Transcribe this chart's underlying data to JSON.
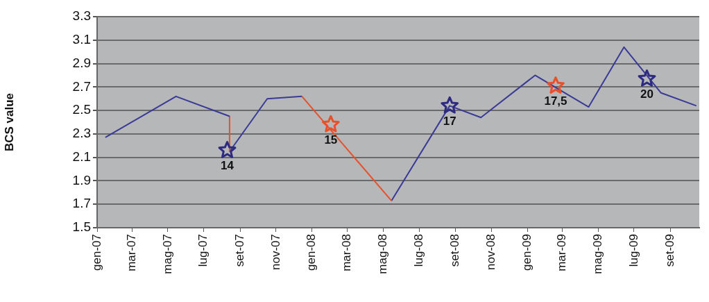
{
  "chart_data": {
    "type": "line",
    "ylabel": "BCS value",
    "ylim": [
      1.5,
      3.3
    ],
    "yticks": [
      1.5,
      1.7,
      1.9,
      2.1,
      2.3,
      2.5,
      2.7,
      2.9,
      3.1,
      3.3
    ],
    "xlim": [
      "2007-01-01",
      "2009-10-20"
    ],
    "xticks": [
      {
        "value": "2007-01",
        "label": "gen-07"
      },
      {
        "value": "2007-03",
        "label": "mar-07"
      },
      {
        "value": "2007-05",
        "label": "mag-07"
      },
      {
        "value": "2007-07",
        "label": "lug-07"
      },
      {
        "value": "2007-09",
        "label": "set-07"
      },
      {
        "value": "2007-11",
        "label": "nov-07"
      },
      {
        "value": "2008-01",
        "label": "gen-08"
      },
      {
        "value": "2008-03",
        "label": "mar-08"
      },
      {
        "value": "2008-05",
        "label": "mag-08"
      },
      {
        "value": "2008-07",
        "label": "lug-08"
      },
      {
        "value": "2008-09",
        "label": "set-08"
      },
      {
        "value": "2008-11",
        "label": "nov-08"
      },
      {
        "value": "2009-01",
        "label": "gen-09"
      },
      {
        "value": "2009-03",
        "label": "mar-09"
      },
      {
        "value": "2009-05",
        "label": "mag-09"
      },
      {
        "value": "2009-07",
        "label": "lug-09"
      },
      {
        "value": "2009-09",
        "label": "set-09"
      }
    ],
    "grid": "y",
    "legend": false,
    "marker": "none",
    "line_style": "solid",
    "series": [
      {
        "type": "line",
        "color": "#3a3a96",
        "x": [
          "2007-01-15",
          "2007-05-15",
          "2007-08-14"
        ],
        "values": [
          2.27,
          2.62,
          2.45
        ]
      },
      {
        "type": "line",
        "color": "#e8502a",
        "x": [
          "2007-08-14",
          "2007-08-14"
        ],
        "values": [
          2.45,
          2.15
        ]
      },
      {
        "type": "line",
        "color": "#3a3a96",
        "x": [
          "2007-08-14",
          "2007-10-17",
          "2007-12-15"
        ],
        "values": [
          2.15,
          2.6,
          2.62
        ]
      },
      {
        "type": "line",
        "color": "#e8502a",
        "x": [
          "2007-12-15",
          "2008-05-15"
        ],
        "values": [
          2.62,
          1.73
        ]
      },
      {
        "type": "line",
        "color": "#3a3a96",
        "x": [
          "2008-05-15",
          "2008-08-22",
          "2008-10-14",
          "2009-01-14",
          "2009-04-15",
          "2009-06-14",
          "2009-08-16",
          "2009-10-15"
        ],
        "values": [
          1.73,
          2.54,
          2.44,
          2.8,
          2.53,
          3.04,
          2.65,
          2.54
        ]
      },
      {
        "type": "scatter",
        "marker": "star",
        "color": "#2e2a80",
        "x": [
          "2007-08-10",
          "2008-08-22",
          "2009-07-23"
        ],
        "values": [
          2.16,
          2.54,
          2.77
        ]
      },
      {
        "type": "scatter",
        "marker": "star",
        "color": "#e8502a",
        "x": [
          "2008-02-02",
          "2009-02-18"
        ],
        "values": [
          2.38,
          2.71
        ]
      }
    ],
    "annotations": [
      {
        "text": "14",
        "x": "2007-08-10",
        "y": 2.16
      },
      {
        "text": "15",
        "x": "2008-02-02",
        "y": 2.38
      },
      {
        "text": "17",
        "x": "2008-08-22",
        "y": 2.54
      },
      {
        "text": "17,5",
        "x": "2009-02-18",
        "y": 2.71
      },
      {
        "text": "20",
        "x": "2009-07-23",
        "y": 2.77
      }
    ]
  }
}
